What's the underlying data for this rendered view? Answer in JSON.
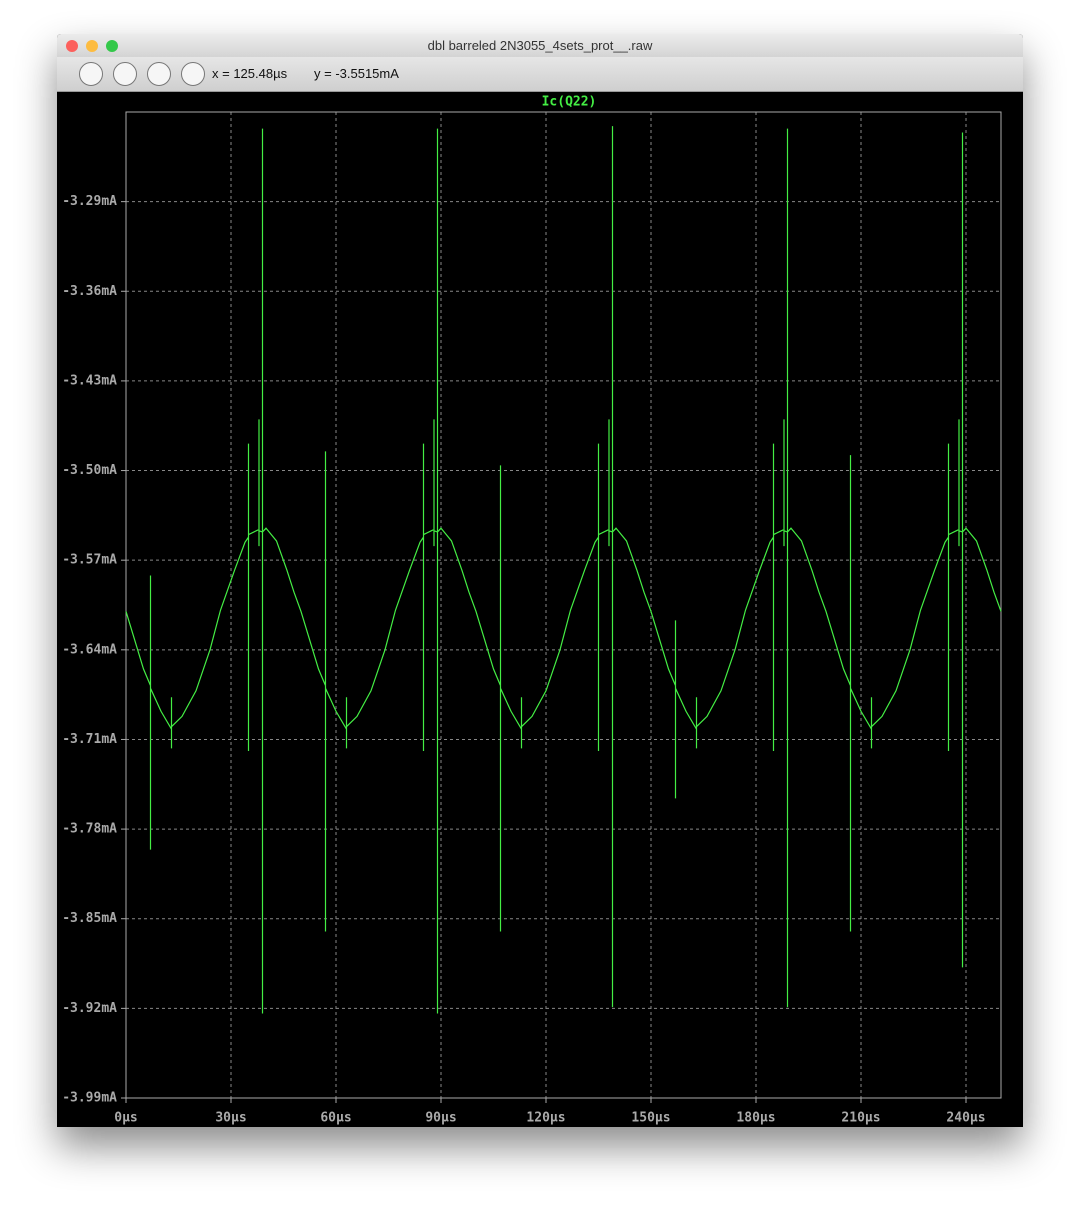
{
  "window": {
    "title": "dbl barreled 2N3055_4sets_prot__.raw",
    "cursor_x": "x = 125.48µs",
    "cursor_y": "y = -3.5515mA"
  },
  "chart_data": {
    "type": "line",
    "title": "Ic(Q22)",
    "x": [
      0,
      5,
      7,
      7,
      7,
      7,
      10,
      13,
      13,
      13,
      13,
      16,
      20,
      24,
      27,
      31,
      34,
      35,
      35,
      35,
      35,
      38,
      38,
      38,
      38,
      39,
      39,
      39,
      39,
      40,
      43,
      46,
      48,
      50,
      55,
      57,
      57,
      57,
      57,
      60,
      63,
      63,
      63,
      63,
      66,
      70,
      74,
      77,
      81,
      84,
      85,
      85,
      85,
      85,
      88,
      88,
      88,
      88,
      89,
      89,
      89,
      89,
      90,
      93,
      96,
      98,
      100,
      105,
      107,
      107,
      107,
      107,
      110,
      113,
      113,
      113,
      113,
      116,
      120,
      124,
      127,
      131,
      134,
      135,
      135,
      135,
      135,
      138,
      138,
      138,
      138,
      139,
      139,
      139,
      139,
      140,
      143,
      146,
      148,
      150,
      155,
      157,
      157,
      157,
      157,
      160,
      163,
      163,
      163,
      163,
      166,
      170,
      174,
      177,
      181,
      184,
      185,
      185,
      185,
      185,
      188,
      188,
      188,
      188,
      189,
      189,
      189,
      189,
      190,
      193,
      196,
      198,
      200,
      205,
      207,
      207,
      207,
      207,
      210,
      213,
      213,
      213,
      213,
      216,
      220,
      224,
      227,
      231,
      234,
      235,
      235,
      235,
      235,
      238,
      238,
      238,
      238,
      239,
      239,
      239,
      239,
      240,
      243,
      246,
      248,
      250
    ],
    "series": [
      {
        "name": "Ic(Q22)",
        "color": "#44ee44",
        "values": [
          -3.61,
          -3.655,
          -3.668,
          -3.582,
          -3.796,
          -3.67,
          -3.688,
          -3.702,
          -3.677,
          -3.717,
          -3.7,
          -3.692,
          -3.672,
          -3.64,
          -3.609,
          -3.578,
          -3.556,
          -3.552,
          -3.479,
          -3.719,
          -3.55,
          -3.546,
          -3.46,
          -3.559,
          -3.547,
          -3.548,
          -3.233,
          -3.924,
          -3.548,
          -3.545,
          -3.555,
          -3.578,
          -3.595,
          -3.61,
          -3.655,
          -3.668,
          -3.485,
          -3.86,
          -3.67,
          -3.688,
          -3.702,
          -3.677,
          -3.717,
          -3.7,
          -3.692,
          -3.672,
          -3.64,
          -3.609,
          -3.578,
          -3.556,
          -3.552,
          -3.479,
          -3.719,
          -3.55,
          -3.546,
          -3.46,
          -3.559,
          -3.547,
          -3.548,
          -3.233,
          -3.924,
          -3.548,
          -3.545,
          -3.555,
          -3.578,
          -3.595,
          -3.61,
          -3.655,
          -3.668,
          -3.496,
          -3.86,
          -3.67,
          -3.688,
          -3.702,
          -3.677,
          -3.717,
          -3.7,
          -3.692,
          -3.672,
          -3.64,
          -3.609,
          -3.578,
          -3.556,
          -3.552,
          -3.479,
          -3.719,
          -3.55,
          -3.546,
          -3.46,
          -3.559,
          -3.547,
          -3.548,
          -3.231,
          -3.919,
          -3.548,
          -3.545,
          -3.555,
          -3.578,
          -3.595,
          -3.61,
          -3.655,
          -3.668,
          -3.617,
          -3.756,
          -3.67,
          -3.688,
          -3.702,
          -3.677,
          -3.717,
          -3.7,
          -3.692,
          -3.672,
          -3.64,
          -3.609,
          -3.578,
          -3.556,
          -3.552,
          -3.479,
          -3.719,
          -3.55,
          -3.546,
          -3.46,
          -3.559,
          -3.547,
          -3.548,
          -3.233,
          -3.919,
          -3.548,
          -3.545,
          -3.555,
          -3.578,
          -3.595,
          -3.61,
          -3.655,
          -3.668,
          -3.488,
          -3.86,
          -3.67,
          -3.688,
          -3.702,
          -3.677,
          -3.717,
          -3.7,
          -3.692,
          -3.672,
          -3.64,
          -3.609,
          -3.578,
          -3.556,
          -3.552,
          -3.479,
          -3.719,
          -3.55,
          -3.546,
          -3.46,
          -3.559,
          -3.547,
          -3.548,
          -3.236,
          -3.888,
          -3.548,
          -3.545,
          -3.555,
          -3.578,
          -3.595,
          -3.61
        ]
      }
    ],
    "xlim": [
      0,
      250
    ],
    "xticks": [
      {
        "value": 0,
        "label": "0µs"
      },
      {
        "value": 30,
        "label": "30µs"
      },
      {
        "value": 60,
        "label": "60µs"
      },
      {
        "value": 90,
        "label": "90µs"
      },
      {
        "value": 120,
        "label": "120µs"
      },
      {
        "value": 150,
        "label": "150µs"
      },
      {
        "value": 180,
        "label": "180µs"
      },
      {
        "value": 210,
        "label": "210µs"
      },
      {
        "value": 240,
        "label": "240µs"
      }
    ],
    "ylim": [
      -3.99,
      -3.22
    ],
    "yticks": [
      {
        "value": -3.29,
        "label": "-3.29mA"
      },
      {
        "value": -3.36,
        "label": "-3.36mA"
      },
      {
        "value": -3.43,
        "label": "-3.43mA"
      },
      {
        "value": -3.5,
        "label": "-3.50mA"
      },
      {
        "value": -3.57,
        "label": "-3.57mA"
      },
      {
        "value": -3.64,
        "label": "-3.64mA"
      },
      {
        "value": -3.71,
        "label": "-3.71mA"
      },
      {
        "value": -3.78,
        "label": "-3.78mA"
      },
      {
        "value": -3.85,
        "label": "-3.85mA"
      },
      {
        "value": -3.92,
        "label": "-3.92mA"
      },
      {
        "value": -3.99,
        "label": "-3.99mA"
      }
    ],
    "grid": true
  }
}
